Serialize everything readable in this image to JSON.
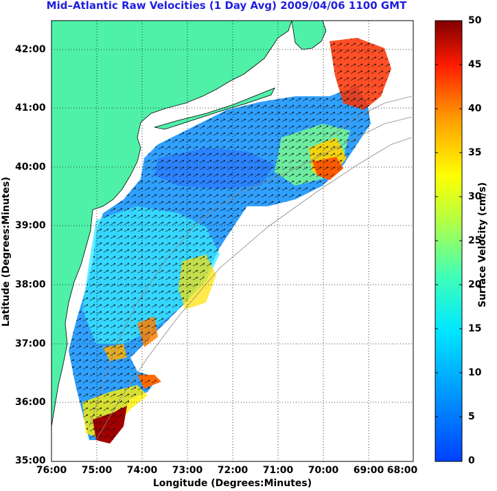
{
  "title": "Mid–Atlantic Raw Velocities (1 Day Avg) 2009/04/06 1100 GMT",
  "x_axis_label": "Longitude (Degrees:Minutes)",
  "y_axis_label": "Latitude (Degrees:Minutes)",
  "colorbar": {
    "label": "Surface Velocity (cm/s)",
    "ticks": [
      "0",
      "5",
      "10",
      "15",
      "20",
      "25",
      "30",
      "35",
      "40",
      "45",
      "50"
    ],
    "range": [
      0,
      50
    ],
    "colormap": "jet"
  },
  "x_ticks": [
    "76:00",
    "75:00",
    "74:00",
    "73:00",
    "72:00",
    "71:00",
    "70:00",
    "69:00",
    "68:00"
  ],
  "y_ticks": [
    "42:00",
    "41:00",
    "40:00",
    "39:00",
    "38:00",
    "37:00",
    "36:00",
    "35:00"
  ],
  "map": {
    "lon_range": [
      -76,
      -68
    ],
    "lat_range": [
      35,
      42.5
    ],
    "land_color": "#4ff0a8",
    "grid": "dotted",
    "vectors": "black velocity arrows over color field"
  }
}
